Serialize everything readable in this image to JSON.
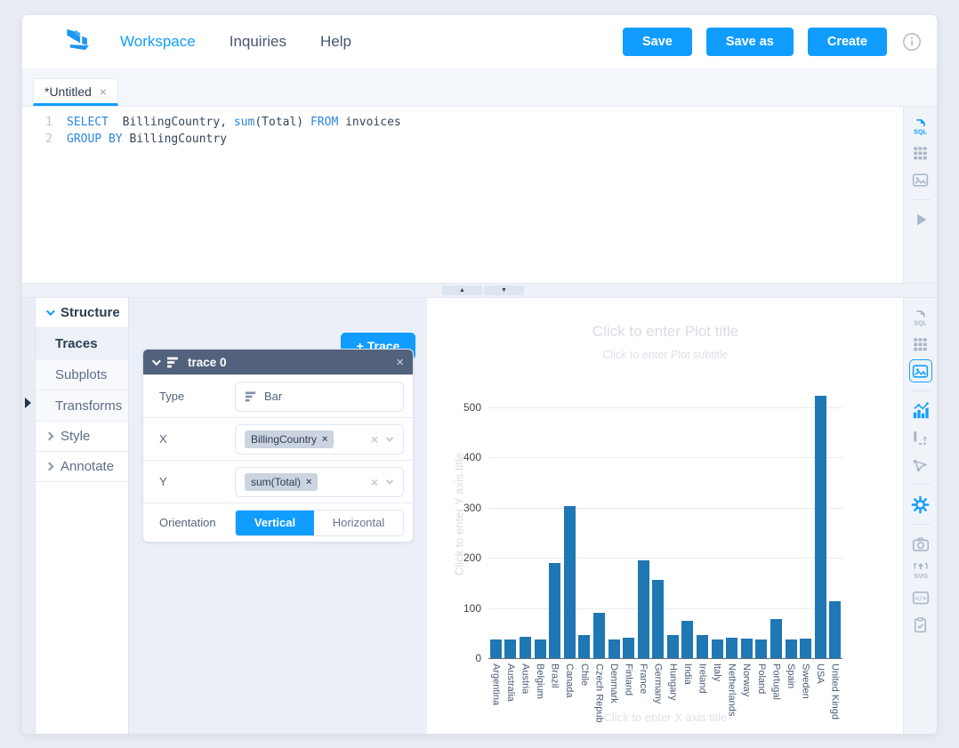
{
  "app": {
    "accent_color": "#119dff",
    "icon_gray": "#a9b6c8"
  },
  "header": {
    "logo": "falcon-logo",
    "nav": [
      {
        "label": "Workspace",
        "active": true
      },
      {
        "label": "Inquiries",
        "active": false
      },
      {
        "label": "Help",
        "active": false
      }
    ],
    "buttons": [
      "Save",
      "Save as",
      "Create"
    ],
    "info_icon": "info-icon"
  },
  "tab": {
    "label": "*Untitled",
    "close_glyph": "×"
  },
  "sql_editor": {
    "lines": [
      {
        "num": "1",
        "segments": [
          {
            "t": "kw",
            "s": "SELECT"
          },
          {
            "t": "pl",
            "s": "  BillingCountry, "
          },
          {
            "t": "kw",
            "s": "sum"
          },
          {
            "t": "pl",
            "s": "(Total) "
          },
          {
            "t": "kw",
            "s": "FROM"
          },
          {
            "t": "pl",
            "s": " invoices"
          }
        ]
      },
      {
        "num": "2",
        "segments": [
          {
            "t": "kw",
            "s": "GROUP BY"
          },
          {
            "t": "pl",
            "s": " BillingCountry"
          }
        ]
      }
    ]
  },
  "editor_toolbar": [
    {
      "icon": "sql",
      "state": "active"
    },
    {
      "icon": "table",
      "state": ""
    },
    {
      "icon": "image",
      "state": ""
    },
    {
      "icon": "divider",
      "state": ""
    },
    {
      "icon": "run",
      "state": ""
    }
  ],
  "splitter": {
    "up_glyph": "▲",
    "down_glyph": "▼"
  },
  "sidebar": {
    "structure_label": "Structure",
    "children": [
      "Traces",
      "Subplots",
      "Transforms"
    ],
    "active_child": "Traces",
    "style_label": "Style",
    "annotate_label": "Annotate"
  },
  "trace_editor": {
    "add_trace_label": "+ Trace",
    "panel_title": "trace 0",
    "close_glyph": "×",
    "type_label": "Type",
    "type_value": "Bar",
    "x_label": "X",
    "x_chip": "BillingCountry",
    "y_label": "Y",
    "y_chip": "sum(Total)",
    "chip_remove_glyph": "×",
    "clear_glyph": "×",
    "orientation_label": "Orientation",
    "orientation_options": [
      "Vertical",
      "Horizontal"
    ],
    "orientation_selected": "Vertical"
  },
  "chart": {
    "title_placeholder": "Click to enter Plot title",
    "subtitle_placeholder": "Click to enter Plot subtitle",
    "y_axis_placeholder": "Click to enter Y axis title",
    "x_axis_placeholder": "Click to enter X axis title"
  },
  "chart_data": {
    "type": "bar",
    "title": "",
    "xlabel": "",
    "ylabel": "",
    "categories": [
      "Argentina",
      "Australia",
      "Austria",
      "Belgium",
      "Brazil",
      "Canada",
      "Chile",
      "Czech Republic",
      "Denmark",
      "Finland",
      "France",
      "Germany",
      "Hungary",
      "India",
      "Ireland",
      "Italy",
      "Netherlands",
      "Norway",
      "Poland",
      "Portugal",
      "Spain",
      "Sweden",
      "USA",
      "United Kingdom"
    ],
    "tick_labels": [
      "Argentina",
      "Australia",
      "Austria",
      "Belgium",
      "Brazil",
      "Canada",
      "Chile",
      "Czech Repub",
      "Denmark",
      "Finland",
      "France",
      "Germany",
      "Hungary",
      "India",
      "Ireland",
      "Italy",
      "Netherlands",
      "Norway",
      "Poland",
      "Portugal",
      "Spain",
      "Sweden",
      "USA",
      "United Kingd"
    ],
    "values": [
      37.62,
      37.62,
      42.62,
      37.62,
      190.1,
      303.96,
      46.62,
      90.24,
      37.62,
      41.62,
      195.1,
      156.48,
      45.62,
      75.26,
      45.62,
      37.62,
      40.62,
      39.62,
      37.62,
      77.24,
      37.62,
      38.62,
      523.06,
      112.86
    ],
    "yticks": [
      0,
      100,
      200,
      300,
      400,
      500
    ],
    "ylim": [
      0,
      540
    ],
    "grid": true,
    "legend": false,
    "bar_color": "#1f77b4"
  },
  "chart_toolbar": [
    {
      "icon": "sql",
      "state": ""
    },
    {
      "icon": "table",
      "state": ""
    },
    {
      "icon": "image",
      "state": "selected"
    },
    {
      "icon": "divider",
      "state": ""
    },
    {
      "icon": "chart",
      "state": "accent"
    },
    {
      "icon": "axes",
      "state": ""
    },
    {
      "icon": "annotate",
      "state": ""
    },
    {
      "icon": "divider",
      "state": ""
    },
    {
      "icon": "gear",
      "state": "accent"
    },
    {
      "icon": "divider",
      "state": ""
    },
    {
      "icon": "camera",
      "state": ""
    },
    {
      "icon": "svg-export",
      "state": ""
    },
    {
      "icon": "code",
      "state": ""
    },
    {
      "icon": "clipboard",
      "state": ""
    }
  ]
}
